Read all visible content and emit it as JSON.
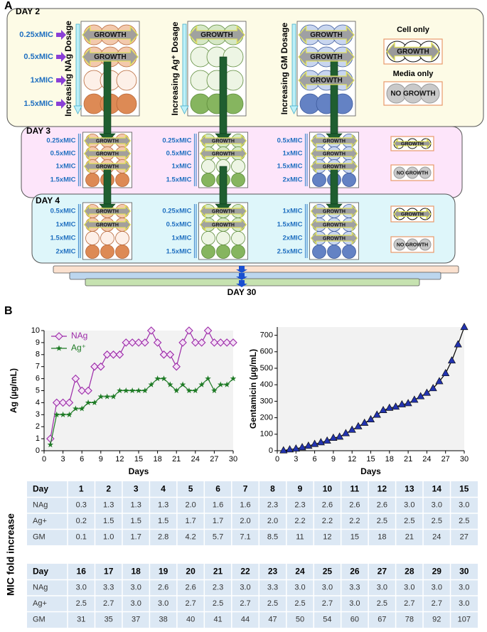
{
  "diagram": {
    "panel": "A",
    "final_day": "DAY 30",
    "days": [
      {
        "label": "DAY 2",
        "columns": [
          {
            "title": "Increasing NAg Dosage",
            "doses": [
              "0.25xMIC",
              "0.5xMIC",
              "1xMIC",
              "1.5xMIC"
            ],
            "growth": [
              "GROWTH",
              "GROWTH"
            ]
          },
          {
            "title": "Increasing Ag⁺ Dosage",
            "growth": [
              "GROWTH"
            ]
          },
          {
            "title": "Increasing GM Dosage",
            "growth": [
              "GROWTH",
              "GROWTH",
              "GROWTH"
            ]
          }
        ],
        "controls": [
          {
            "title": "Cell only",
            "label": "GROWTH"
          },
          {
            "title": "Media only",
            "label": "NO GROWTH"
          }
        ]
      },
      {
        "label": "DAY 3",
        "columns": [
          {
            "doses": [
              "0.25xMIC",
              "0.5xMIC",
              "1xMIC",
              "1.5xMIC"
            ],
            "growth": [
              "GROWTH",
              "GROWTH",
              "GROWTH"
            ]
          },
          {
            "doses": [
              "0.25xMIC",
              "0.5xMIC",
              "1xMIC",
              "1.5xMIC"
            ],
            "growth": [
              "GROWTH",
              "GROWTH"
            ]
          },
          {
            "doses": [
              "0.5xMIC",
              "1xMIC",
              "1.5xMIC",
              "2xMIC"
            ],
            "growth": [
              "GROWTH",
              "GROWTH",
              "GROWTH"
            ]
          }
        ],
        "controls": [
          {
            "label": "GROWTH"
          },
          {
            "label": "NO GROWTH"
          }
        ]
      },
      {
        "label": "DAY 4",
        "columns": [
          {
            "doses": [
              "0.5xMIC",
              "1xMIC",
              "1.5xMIC",
              "2xMIC"
            ],
            "growth": [
              "GROWTH",
              "GROWTH"
            ]
          },
          {
            "doses": [
              "0.25xMIC",
              "0.5xMIC",
              "1xMIC",
              "1.5xMIC"
            ],
            "growth": [
              "GROWTH",
              "GROWTH"
            ]
          },
          {
            "doses": [
              "1xMIC",
              "1.5xMIC",
              "2xMIC",
              "2.5xMIC"
            ],
            "growth": [
              "GROWTH",
              "GROWTH",
              "GROWTH"
            ]
          }
        ],
        "controls": [
          {
            "label": "GROWTH"
          },
          {
            "label": "NO GROWTH"
          }
        ]
      }
    ]
  },
  "panel_b": "B",
  "chart_data": [
    {
      "type": "line",
      "x": [
        1,
        2,
        3,
        4,
        5,
        6,
        7,
        8,
        9,
        10,
        11,
        12,
        13,
        14,
        15,
        16,
        17,
        18,
        19,
        20,
        21,
        22,
        23,
        24,
        25,
        26,
        27,
        28,
        29,
        30
      ],
      "series": [
        {
          "name": "NAg",
          "color": "#9c2aa8",
          "marker": "diamond",
          "values": [
            1,
            4,
            4,
            4,
            6,
            5,
            5,
            7,
            7,
            8,
            8,
            8,
            9,
            9,
            9,
            9,
            10,
            9,
            8,
            8,
            7,
            9,
            10,
            9,
            9,
            10,
            9,
            9,
            9,
            9
          ]
        },
        {
          "name": "Ag⁺",
          "color": "#1d7a24",
          "marker": "star",
          "values": [
            0.5,
            3,
            3,
            3,
            3.5,
            3.5,
            4,
            4,
            4.5,
            4.5,
            4.5,
            5,
            5,
            5,
            5,
            5,
            5.5,
            6,
            6,
            5.5,
            5,
            5.5,
            5,
            5,
            5.5,
            6,
            5,
            5.5,
            5.5,
            6
          ]
        }
      ],
      "xlim": [
        0,
        30
      ],
      "xticks": [
        0,
        3,
        6,
        9,
        12,
        15,
        18,
        21,
        24,
        27,
        30
      ],
      "ylim": [
        0,
        10
      ],
      "yticks": [
        0,
        1,
        2,
        3,
        4,
        5,
        6,
        7,
        8,
        9,
        10
      ],
      "xlabel": "Days",
      "ylabel": "Ag (µg/mL)",
      "legend": "upper left"
    },
    {
      "type": "line",
      "x": [
        1,
        2,
        3,
        4,
        5,
        6,
        7,
        8,
        9,
        10,
        11,
        12,
        13,
        14,
        15,
        16,
        17,
        18,
        19,
        20,
        21,
        22,
        23,
        24,
        25,
        26,
        27,
        28,
        29,
        30
      ],
      "values": [
        1,
        7,
        12,
        20,
        29,
        40,
        50,
        60,
        77,
        84,
        105,
        126,
        147,
        168,
        189,
        217,
        245,
        259,
        266,
        280,
        287,
        308,
        329,
        350,
        378,
        420,
        469,
        546,
        644,
        749
      ],
      "color": "#2233b0",
      "line_color": "#000000",
      "marker": "triangle",
      "xlim": [
        0,
        30
      ],
      "xticks": [
        0,
        3,
        6,
        9,
        12,
        15,
        18,
        21,
        24,
        27,
        30
      ],
      "ylim": [
        0,
        750
      ],
      "yticks": [
        0,
        100,
        200,
        300,
        400,
        500,
        600,
        700
      ],
      "xlabel": "Days",
      "ylabel": "Gentamicin (µg/mL)"
    }
  ],
  "tables": {
    "side_label": "MIC fold increase",
    "blocks": [
      {
        "header": [
          "Day",
          "1",
          "2",
          "3",
          "4",
          "5",
          "6",
          "7",
          "8",
          "9",
          "10",
          "11",
          "12",
          "13",
          "14",
          "15"
        ],
        "rows": [
          [
            "NAg",
            "0.3",
            "1.3",
            "1.3",
            "1.3",
            "2.0",
            "1.6",
            "1.6",
            "2.3",
            "2.3",
            "2.6",
            "2.6",
            "2.6",
            "3.0",
            "3.0",
            "3.0"
          ],
          [
            "Ag+",
            "0.2",
            "1.5",
            "1.5",
            "1.5",
            "1.7",
            "1.7",
            "2.0",
            "2.0",
            "2.2",
            "2.2",
            "2.2",
            "2.5",
            "2.5",
            "2.5",
            "2.5"
          ],
          [
            "GM",
            "0.1",
            "1.0",
            "1.7",
            "2.8",
            "4.2",
            "5.7",
            "7.1",
            "8.5",
            "11",
            "12",
            "15",
            "18",
            "21",
            "24",
            "27"
          ]
        ]
      },
      {
        "header": [
          "Day",
          "16",
          "17",
          "18",
          "19",
          "20",
          "21",
          "22",
          "23",
          "24",
          "25",
          "26",
          "27",
          "28",
          "29",
          "30"
        ],
        "rows": [
          [
            "NAg",
            "3.0",
            "3.3",
            "3.0",
            "2.6",
            "2.6",
            "2.3",
            "3.0",
            "3.3",
            "3.0",
            "3.0",
            "3.3",
            "3.0",
            "3.0",
            "3.0",
            "3.0"
          ],
          [
            "Ag+",
            "2.5",
            "2.7",
            "3.0",
            "3.0",
            "2.7",
            "2.5",
            "2.7",
            "2.5",
            "2.5",
            "2.7",
            "3.0",
            "2.5",
            "2.7",
            "2.7",
            "3.0"
          ],
          [
            "GM",
            "31",
            "35",
            "37",
            "38",
            "40",
            "41",
            "44",
            "47",
            "50",
            "54",
            "60",
            "67",
            "78",
            "92",
            "107"
          ]
        ]
      }
    ]
  }
}
